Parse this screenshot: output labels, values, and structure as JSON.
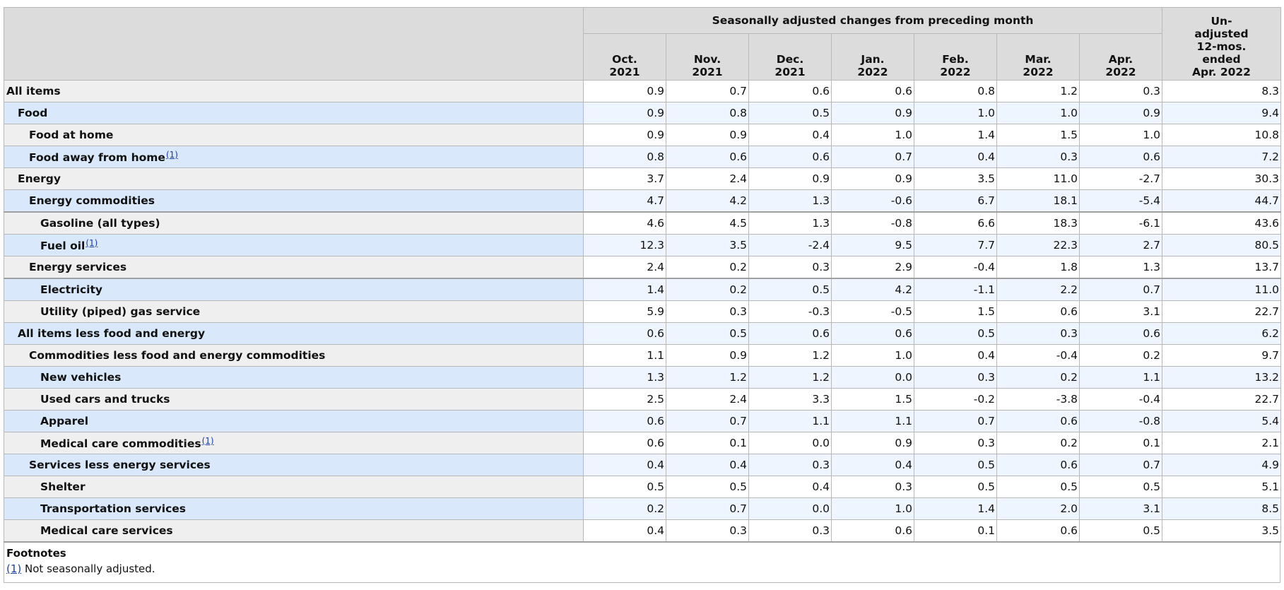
{
  "header": {
    "group_label": "Seasonally adjusted changes from preceding month",
    "columns": [
      {
        "line1": "Oct.",
        "line2": "2021"
      },
      {
        "line1": "Nov.",
        "line2": "2021"
      },
      {
        "line1": "Dec.",
        "line2": "2021"
      },
      {
        "line1": "Jan.",
        "line2": "2022"
      },
      {
        "line1": "Feb.",
        "line2": "2022"
      },
      {
        "line1": "Mar.",
        "line2": "2022"
      },
      {
        "line1": "Apr.",
        "line2": "2022"
      }
    ],
    "unadjusted_lines": [
      "Un-",
      "adjusted",
      "12-mos.",
      "ended",
      "Apr. 2022"
    ]
  },
  "rows": [
    {
      "label": "All items",
      "indent": 0,
      "fn": "",
      "values": [
        "0.9",
        "0.7",
        "0.6",
        "0.6",
        "0.8",
        "1.2",
        "0.3",
        "8.3"
      ]
    },
    {
      "label": "Food",
      "indent": 1,
      "fn": "",
      "values": [
        "0.9",
        "0.8",
        "0.5",
        "0.9",
        "1.0",
        "1.0",
        "0.9",
        "9.4"
      ]
    },
    {
      "label": "Food at home",
      "indent": 2,
      "fn": "",
      "values": [
        "0.9",
        "0.9",
        "0.4",
        "1.0",
        "1.4",
        "1.5",
        "1.0",
        "10.8"
      ]
    },
    {
      "label": "Food away from home",
      "indent": 2,
      "fn": "(1)",
      "values": [
        "0.8",
        "0.6",
        "0.6",
        "0.7",
        "0.4",
        "0.3",
        "0.6",
        "7.2"
      ]
    },
    {
      "label": "Energy",
      "indent": 1,
      "fn": "",
      "values": [
        "3.7",
        "2.4",
        "0.9",
        "0.9",
        "3.5",
        "11.0",
        "-2.7",
        "30.3"
      ]
    },
    {
      "label": "Energy commodities",
      "indent": 2,
      "fn": "",
      "values": [
        "4.7",
        "4.2",
        "1.3",
        "-0.6",
        "6.7",
        "18.1",
        "-5.4",
        "44.7"
      ]
    },
    {
      "label": "Gasoline (all types)",
      "indent": 3,
      "fn": "",
      "values": [
        "4.6",
        "4.5",
        "1.3",
        "-0.8",
        "6.6",
        "18.3",
        "-6.1",
        "43.6"
      ]
    },
    {
      "label": "Fuel oil",
      "indent": 3,
      "fn": "(1)",
      "values": [
        "12.3",
        "3.5",
        "-2.4",
        "9.5",
        "7.7",
        "22.3",
        "2.7",
        "80.5"
      ]
    },
    {
      "label": "Energy services",
      "indent": 2,
      "fn": "",
      "values": [
        "2.4",
        "0.2",
        "0.3",
        "2.9",
        "-0.4",
        "1.8",
        "1.3",
        "13.7"
      ]
    },
    {
      "label": "Electricity",
      "indent": 3,
      "fn": "",
      "values": [
        "1.4",
        "0.2",
        "0.5",
        "4.2",
        "-1.1",
        "2.2",
        "0.7",
        "11.0"
      ]
    },
    {
      "label": "Utility (piped) gas service",
      "indent": 3,
      "fn": "",
      "values": [
        "5.9",
        "0.3",
        "-0.3",
        "-0.5",
        "1.5",
        "0.6",
        "3.1",
        "22.7"
      ]
    },
    {
      "label": "All items less food and energy",
      "indent": 1,
      "fn": "",
      "values": [
        "0.6",
        "0.5",
        "0.6",
        "0.6",
        "0.5",
        "0.3",
        "0.6",
        "6.2"
      ]
    },
    {
      "label": "Commodities less food and energy commodities",
      "indent": 2,
      "fn": "",
      "values": [
        "1.1",
        "0.9",
        "1.2",
        "1.0",
        "0.4",
        "-0.4",
        "0.2",
        "9.7"
      ]
    },
    {
      "label": "New vehicles",
      "indent": 3,
      "fn": "",
      "values": [
        "1.3",
        "1.2",
        "1.2",
        "0.0",
        "0.3",
        "0.2",
        "1.1",
        "13.2"
      ]
    },
    {
      "label": "Used cars and trucks",
      "indent": 3,
      "fn": "",
      "values": [
        "2.5",
        "2.4",
        "3.3",
        "1.5",
        "-0.2",
        "-3.8",
        "-0.4",
        "22.7"
      ]
    },
    {
      "label": "Apparel",
      "indent": 3,
      "fn": "",
      "values": [
        "0.6",
        "0.7",
        "1.1",
        "1.1",
        "0.7",
        "0.6",
        "-0.8",
        "5.4"
      ]
    },
    {
      "label": "Medical care commodities",
      "indent": 3,
      "fn": "(1)",
      "values": [
        "0.6",
        "0.1",
        "0.0",
        "0.9",
        "0.3",
        "0.2",
        "0.1",
        "2.1"
      ]
    },
    {
      "label": "Services less energy services",
      "indent": 2,
      "fn": "",
      "values": [
        "0.4",
        "0.4",
        "0.3",
        "0.4",
        "0.5",
        "0.6",
        "0.7",
        "4.9"
      ]
    },
    {
      "label": "Shelter",
      "indent": 3,
      "fn": "",
      "values": [
        "0.5",
        "0.5",
        "0.4",
        "0.3",
        "0.5",
        "0.5",
        "0.5",
        "5.1"
      ]
    },
    {
      "label": "Transportation services",
      "indent": 3,
      "fn": "",
      "values": [
        "0.2",
        "0.7",
        "0.0",
        "1.0",
        "1.4",
        "2.0",
        "3.1",
        "8.5"
      ]
    },
    {
      "label": "Medical care services",
      "indent": 3,
      "fn": "",
      "values": [
        "0.4",
        "0.3",
        "0.3",
        "0.6",
        "0.1",
        "0.6",
        "0.5",
        "3.5"
      ]
    }
  ],
  "footnotes": {
    "title": "Footnotes",
    "items": [
      {
        "marker": "(1)",
        "text": " Not seasonally adjusted."
      }
    ]
  }
}
